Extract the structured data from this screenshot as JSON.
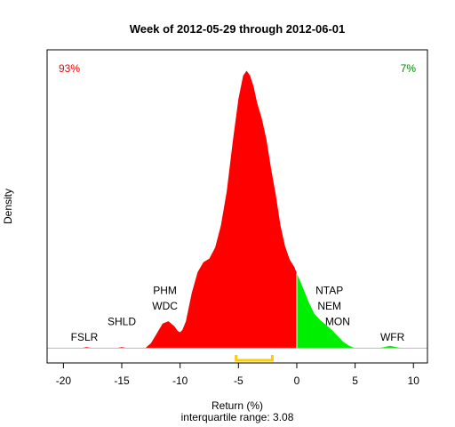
{
  "chart_data": {
    "type": "area",
    "title": "Week of 2012-05-29 through 2012-06-01",
    "xlabel": "Return (%)",
    "ylabel": "Density",
    "subtitle": "interquartile range: 3.08",
    "xlim": [
      -21.4,
      11.2
    ],
    "ylim": [
      -0.012,
      0.243
    ],
    "xticks": [
      -20,
      -15,
      -10,
      -5,
      0,
      5,
      10
    ],
    "xtick_labels": [
      "-20",
      "-15",
      "-10",
      "-5",
      "0",
      "5",
      "10"
    ],
    "grid": false,
    "legend": "none",
    "split_at": 0,
    "negative_pct_label": "93%",
    "positive_pct_label": "7%",
    "colors": {
      "negative": "#ff0000",
      "positive": "#00ee00",
      "percent_negative": "#ff0000",
      "percent_positive": "#008800",
      "iqr": "#ffcc00",
      "axis": "#000000"
    },
    "density": {
      "x": [
        -18.5,
        -18.0,
        -17.5,
        -16.0,
        -15.5,
        -15.0,
        -14.5,
        -14.0,
        -13.0,
        -12.5,
        -12.0,
        -11.5,
        -11.0,
        -10.5,
        -10.2,
        -10.0,
        -9.8,
        -9.5,
        -9.0,
        -8.5,
        -8.0,
        -7.5,
        -7.0,
        -6.5,
        -6.0,
        -5.5,
        -5.0,
        -4.6,
        -4.3,
        -4.0,
        -3.7,
        -3.4,
        -3.0,
        -2.6,
        -2.2,
        -1.8,
        -1.4,
        -1.0,
        -0.6,
        -0.2,
        0.0,
        0.5,
        1.0,
        1.5,
        2.0,
        2.5,
        3.0,
        3.5,
        4.0,
        4.5,
        5.0,
        5.5,
        7.0,
        7.5,
        8.0,
        8.5,
        9.0,
        9.5
      ],
      "y": [
        0.0,
        0.001,
        0.0,
        0.0,
        0.0,
        0.001,
        0.0,
        0.0,
        0.0,
        0.004,
        0.012,
        0.02,
        0.022,
        0.018,
        0.014,
        0.013,
        0.015,
        0.022,
        0.045,
        0.062,
        0.07,
        0.073,
        0.082,
        0.1,
        0.128,
        0.167,
        0.203,
        0.222,
        0.226,
        0.222,
        0.213,
        0.2,
        0.187,
        0.17,
        0.146,
        0.125,
        0.1,
        0.083,
        0.072,
        0.066,
        0.061,
        0.05,
        0.038,
        0.028,
        0.023,
        0.019,
        0.015,
        0.01,
        0.005,
        0.002,
        0.0,
        0.0,
        0.0,
        0.001,
        0.002,
        0.001,
        0.0,
        0.0
      ]
    },
    "stock_labels": [
      {
        "name": "FSLR",
        "x": -18.2,
        "row": 1
      },
      {
        "name": "SHLD",
        "x": -15.0,
        "row": 2
      },
      {
        "name": "PHM",
        "x": -11.3,
        "row": 4
      },
      {
        "name": "WDC",
        "x": -11.3,
        "row": 3
      },
      {
        "name": "NTAP",
        "x": 2.8,
        "row": 4
      },
      {
        "name": "NEM",
        "x": 2.8,
        "row": 3
      },
      {
        "name": "MON",
        "x": 3.5,
        "row": 2
      },
      {
        "name": "WFR",
        "x": 8.2,
        "row": 1
      }
    ],
    "iqr": {
      "q1": -5.2,
      "q3": -2.1
    }
  }
}
